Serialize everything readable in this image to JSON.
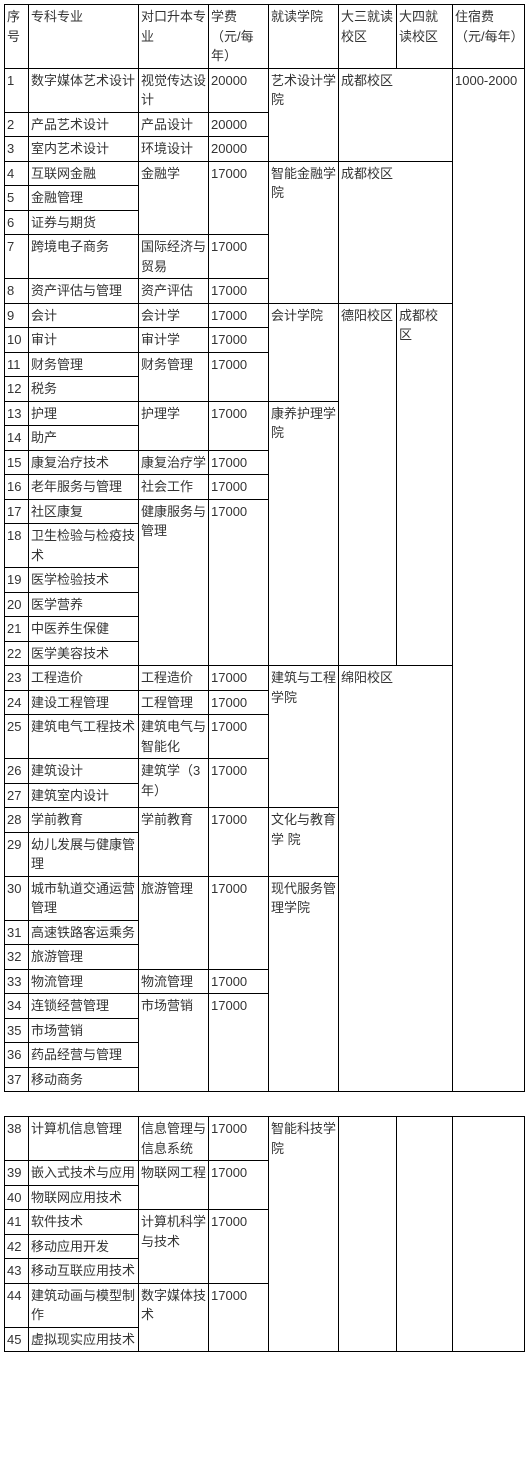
{
  "headers": {
    "c0": "序号",
    "c1": "专科专业",
    "c2": "对口升本专业",
    "c3": "学费（元/每年）",
    "c4": "就读学院",
    "c5": "大三就读校区",
    "c6": "大四就读校区",
    "c7": "住宿费（元/每年）"
  },
  "dorm_fee": "1000-2000",
  "table1": {
    "college_art": "艺术设计学院",
    "college_fin": "智能金融学院",
    "college_acc": "会计学院",
    "college_nurse": "康养护理学院",
    "college_arch": "建筑与工程学院",
    "college_edu": "文化与教育学\n院",
    "college_serv": "现代服务管理学院",
    "campus_cd": "成都校区",
    "campus_dy": "德阳校区",
    "campus_my": "绵阳校区",
    "rows": {
      "r1": {
        "n": "1",
        "maj": "数字媒体艺术设计",
        "up": "视觉传达设计",
        "fee": "20000"
      },
      "r2": {
        "n": "2",
        "maj": "产品艺术设计",
        "up": "产品设计",
        "fee": "20000"
      },
      "r3": {
        "n": "3",
        "maj": "室内艺术设计",
        "up": "环境设计",
        "fee": "20000"
      },
      "r4": {
        "n": "4",
        "maj": "互联网金融"
      },
      "r5": {
        "n": "5",
        "maj": "金融管理"
      },
      "r6": {
        "n": "6",
        "maj": "证券与期货",
        "up": "金融学",
        "fee": "17000"
      },
      "r7": {
        "n": "7",
        "maj": "跨境电子商务",
        "up": "国际经济与贸易",
        "fee": "17000"
      },
      "r8": {
        "n": "8",
        "maj": "资产评估与管理",
        "up": "资产评估",
        "fee": "17000"
      },
      "r9": {
        "n": "9",
        "maj": "会计",
        "up": "会计学",
        "fee": "17000"
      },
      "r10": {
        "n": "10",
        "maj": "审计",
        "up": "审计学",
        "fee": "17000"
      },
      "r11": {
        "n": "11",
        "maj": "财务管理"
      },
      "r12": {
        "n": "12",
        "maj": "税务",
        "up": "财务管理",
        "fee": "17000"
      },
      "r13": {
        "n": "13",
        "maj": "护理"
      },
      "r14": {
        "n": "14",
        "maj": "助产",
        "up": "护理学",
        "fee": "17000"
      },
      "r15": {
        "n": "15",
        "maj": "康复治疗技术",
        "up": "康复治疗学",
        "fee": "17000"
      },
      "r16": {
        "n": "16",
        "maj": "老年服务与管理",
        "up": "社会工作",
        "fee": "17000"
      },
      "r17": {
        "n": "17",
        "maj": "社区康复"
      },
      "r18": {
        "n": "18",
        "maj": "卫生检验与检疫技术"
      },
      "r19": {
        "n": "19",
        "maj": "医学检验技术",
        "up": "健康服务与管理",
        "fee": "17000"
      },
      "r20": {
        "n": "20",
        "maj": "医学营养"
      },
      "r21": {
        "n": "21",
        "maj": "中医养生保健"
      },
      "r22": {
        "n": "22",
        "maj": "医学美容技术"
      },
      "r23": {
        "n": "23",
        "maj": "工程造价",
        "up": "工程造价",
        "fee": "17000"
      },
      "r24": {
        "n": "24",
        "maj": "建设工程管理",
        "up": "工程管理",
        "fee": "17000"
      },
      "r25": {
        "n": "25",
        "maj": "建筑电气工程技术",
        "up": "建筑电气与智能化",
        "fee": "17000"
      },
      "r26": {
        "n": "26",
        "maj": "建筑设计"
      },
      "r27": {
        "n": "27",
        "maj": "建筑室内设计",
        "up": "建筑学（3年）",
        "fee": "17000"
      },
      "r28": {
        "n": "28",
        "maj": "学前教育"
      },
      "r29": {
        "n": "29",
        "maj": "幼儿发展与健康管理",
        "up": "学前教育",
        "fee": "17000"
      },
      "r30": {
        "n": "30",
        "maj": "城市轨道交通运营管理"
      },
      "r31": {
        "n": "31",
        "maj": "高速铁路客运乘务",
        "up": "旅游管理",
        "fee": "17000"
      },
      "r32": {
        "n": "32",
        "maj": "旅游管理"
      },
      "r33": {
        "n": "33",
        "maj": "物流管理",
        "up": "物流管理",
        "fee": "17000"
      },
      "r34": {
        "n": "34",
        "maj": "连锁经营管理"
      },
      "r35": {
        "n": "35",
        "maj": "市场营销"
      },
      "r36": {
        "n": "36",
        "maj": "药品经营与管理",
        "up": "市场营销",
        "fee": "17000"
      },
      "r37": {
        "n": "37",
        "maj": "移动商务"
      }
    }
  },
  "table2": {
    "college_tech": "智能科技学院",
    "rows": {
      "r38": {
        "n": "38",
        "maj": "计算机信息管理",
        "up": "信息管理与信息系统",
        "fee": "17000"
      },
      "r39": {
        "n": "39",
        "maj": "嵌入式技术与应用"
      },
      "r40": {
        "n": "40",
        "maj": "物联网应用技术",
        "up": "物联网工程",
        "fee": "17000"
      },
      "r41": {
        "n": "41",
        "maj": "软件技术"
      },
      "r42": {
        "n": "42",
        "maj": "移动应用开发"
      },
      "r43": {
        "n": "43",
        "maj": "移动互联应用技术",
        "up": "计算机科学与技术",
        "fee": "17000"
      },
      "r44": {
        "n": "44",
        "maj": "建筑动画与模型制作"
      },
      "r45": {
        "n": "45",
        "maj": "虚拟现实应用技术",
        "up": "数字媒体技术",
        "fee": "17000"
      }
    }
  }
}
